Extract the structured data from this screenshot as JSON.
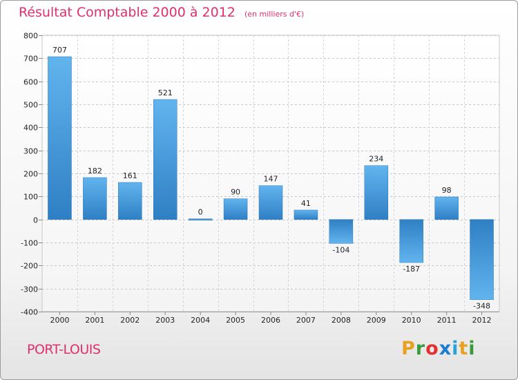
{
  "chart_data": {
    "type": "bar",
    "title": "Résultat Comptable 2000 à 2012",
    "subtitle": "(en milliers d'€)",
    "categories": [
      "2000",
      "2001",
      "2002",
      "2003",
      "2004",
      "2005",
      "2006",
      "2007",
      "2008",
      "2009",
      "2010",
      "2011",
      "2012"
    ],
    "values": [
      707,
      182,
      161,
      521,
      0,
      90,
      147,
      41,
      -104,
      234,
      -187,
      98,
      -348
    ],
    "value_labels": [
      "707",
      "182",
      "161",
      "521",
      "0",
      "90",
      "147",
      "41",
      "-104",
      "234",
      "-187",
      "98",
      "-348"
    ],
    "ylim": [
      -400,
      800
    ],
    "yticks": [
      -400,
      -300,
      -200,
      -100,
      0,
      100,
      200,
      300,
      400,
      500,
      600,
      700,
      800
    ],
    "ytick_labels": [
      "-400",
      "-300",
      "-200",
      "-100",
      "0",
      "100",
      "200",
      "300",
      "400",
      "500",
      "600",
      "700",
      "800"
    ],
    "grid": "horizontal dashed",
    "xlabel": "",
    "ylabel": "",
    "bar_color": "#4a9fe0",
    "bar_color_light": "#6bb8ee",
    "bar_color_dark": "#2f7fc4"
  },
  "commune": "PORT-LOUIS",
  "brand": {
    "letters": [
      "P",
      "r",
      "o",
      "x",
      "i",
      "t",
      "i"
    ],
    "colors": [
      "#e8a020",
      "#3a9a3a",
      "#e03030",
      "#1a7ad0",
      "#2aa0d8",
      "#e8a020",
      "#3a9a3a"
    ]
  }
}
